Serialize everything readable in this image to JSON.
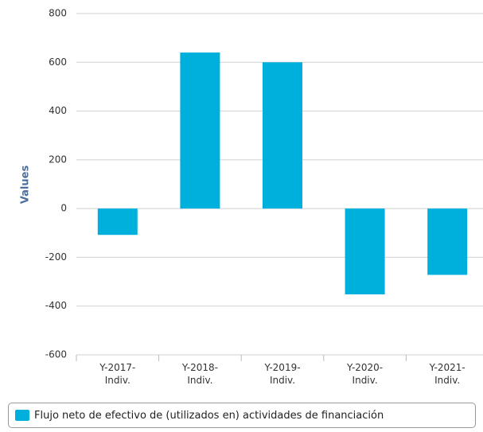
{
  "chart_data": {
    "type": "bar",
    "y_axis_label": "Values",
    "categories": [
      "Y-2017-Indiv.",
      "Y-2018-Indiv.",
      "Y-2019-Indiv.",
      "Y-2020-Indiv.",
      "Y-2021-Indiv."
    ],
    "series": [
      {
        "name": "Flujo neto de efectivo de (utilizados en) actividades de financiación",
        "color": "#00b0dc",
        "values": [
          -108,
          640,
          600,
          -352,
          -272
        ]
      }
    ],
    "ylim": [
      -600,
      800
    ],
    "yticks": [
      -600,
      -400,
      -200,
      0,
      200,
      400,
      600,
      800
    ],
    "grid": true
  }
}
